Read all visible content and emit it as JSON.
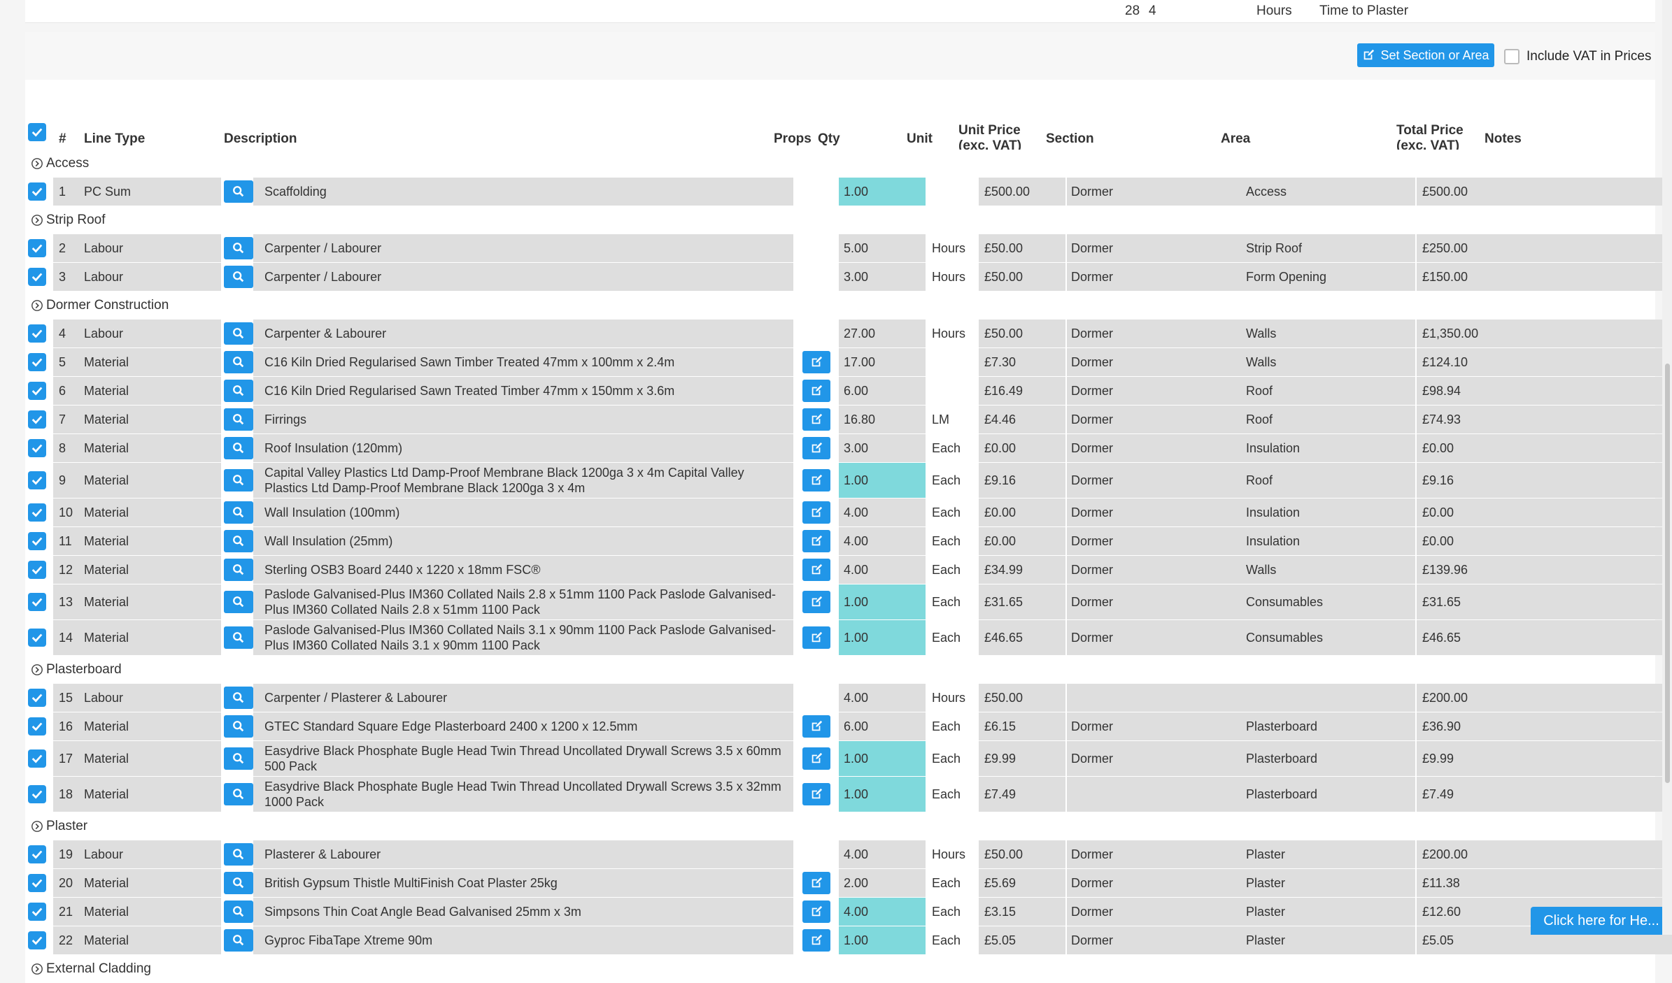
{
  "top": {
    "a": "28",
    "b": "4",
    "unit": "Hours",
    "label": "Time to Plaster"
  },
  "toolbar": {
    "set_section_label": "Set Section or Area",
    "vat_label": "Include VAT in Prices"
  },
  "headers": {
    "num": "#",
    "line_type": "Line Type",
    "description": "Description",
    "props": "Props",
    "qty": "Qty",
    "unit": "Unit",
    "unit_price_1": "Unit Price",
    "unit_price_2": "(exc. VAT)",
    "section": "Section",
    "area": "Area",
    "total_price_1": "Total Price",
    "total_price_2": "(exc. VAT)",
    "notes": "Notes"
  },
  "groups": [
    {
      "name": "Access",
      "rows": [
        {
          "num": "1",
          "type": "PC Sum",
          "desc": "Scaffolding",
          "edit": false,
          "qty": "1.00",
          "qty_hl": true,
          "unit": "",
          "price": "£500.00",
          "section": "Dormer",
          "area": "Access",
          "total": "£500.00"
        }
      ]
    },
    {
      "name": "Strip Roof",
      "rows": [
        {
          "num": "2",
          "type": "Labour",
          "desc": "Carpenter / Labourer",
          "edit": false,
          "qty": "5.00",
          "qty_hl": false,
          "unit": "Hours",
          "price": "£50.00",
          "section": "Dormer",
          "area": "Strip Roof",
          "total": "£250.00"
        },
        {
          "num": "3",
          "type": "Labour",
          "desc": "Carpenter / Labourer",
          "edit": false,
          "qty": "3.00",
          "qty_hl": false,
          "unit": "Hours",
          "price": "£50.00",
          "section": "Dormer",
          "area": "Form Opening",
          "total": "£150.00"
        }
      ]
    },
    {
      "name": "Dormer Construction",
      "rows": [
        {
          "num": "4",
          "type": "Labour",
          "desc": "Carpenter & Labourer",
          "edit": false,
          "qty": "27.00",
          "qty_hl": false,
          "unit": "Hours",
          "price": "£50.00",
          "section": "Dormer",
          "area": "Walls",
          "total": "£1,350.00"
        },
        {
          "num": "5",
          "type": "Material",
          "desc": "C16 Kiln Dried Regularised Sawn Timber Treated 47mm x 100mm x 2.4m",
          "edit": true,
          "qty": "17.00",
          "qty_hl": false,
          "unit": "",
          "price": "£7.30",
          "section": "Dormer",
          "area": "Walls",
          "total": "£124.10"
        },
        {
          "num": "6",
          "type": "Material",
          "desc": "C16 Kiln Dried Regularised Sawn Treated Timber 47mm x 150mm x 3.6m",
          "edit": true,
          "qty": "6.00",
          "qty_hl": false,
          "unit": "",
          "price": "£16.49",
          "section": "Dormer",
          "area": "Roof",
          "total": "£98.94"
        },
        {
          "num": "7",
          "type": "Material",
          "desc": "Firrings",
          "edit": true,
          "qty": "16.80",
          "qty_hl": false,
          "unit": "LM",
          "price": "£4.46",
          "section": "Dormer",
          "area": "Roof",
          "total": "£74.93"
        },
        {
          "num": "8",
          "type": "Material",
          "desc": "Roof Insulation (120mm)",
          "edit": true,
          "qty": "3.00",
          "qty_hl": false,
          "unit": "Each",
          "price": "£0.00",
          "section": "Dormer",
          "area": "Insulation",
          "total": "£0.00"
        },
        {
          "num": "9",
          "type": "Material",
          "desc": "Capital Valley Plastics Ltd Damp-Proof Membrane Black 1200ga 3 x 4m Capital Valley Plastics Ltd Damp-Proof Membrane Black 1200ga 3 x 4m",
          "edit": true,
          "qty": "1.00",
          "qty_hl": true,
          "unit": "Each",
          "price": "£9.16",
          "section": "Dormer",
          "area": "Roof",
          "total": "£9.16",
          "tall": true
        },
        {
          "num": "10",
          "type": "Material",
          "desc": "Wall Insulation (100mm)",
          "edit": true,
          "qty": "4.00",
          "qty_hl": false,
          "unit": "Each",
          "price": "£0.00",
          "section": "Dormer",
          "area": "Insulation",
          "total": "£0.00"
        },
        {
          "num": "11",
          "type": "Material",
          "desc": "Wall Insulation (25mm)",
          "edit": true,
          "qty": "4.00",
          "qty_hl": false,
          "unit": "Each",
          "price": "£0.00",
          "section": "Dormer",
          "area": "Insulation",
          "total": "£0.00"
        },
        {
          "num": "12",
          "type": "Material",
          "desc": "Sterling OSB3 Board 2440 x 1220 x 18mm FSC®",
          "edit": true,
          "qty": "4.00",
          "qty_hl": false,
          "unit": "Each",
          "price": "£34.99",
          "section": "Dormer",
          "area": "Walls",
          "total": "£139.96"
        },
        {
          "num": "13",
          "type": "Material",
          "desc": "Paslode Galvanised-Plus IM360 Collated Nails 2.8 x 51mm 1100 Pack Paslode Galvanised-Plus IM360 Collated Nails 2.8 x 51mm 1100 Pack",
          "edit": true,
          "qty": "1.00",
          "qty_hl": true,
          "unit": "Each",
          "price": "£31.65",
          "section": "Dormer",
          "area": "Consumables",
          "total": "£31.65",
          "tall": true
        },
        {
          "num": "14",
          "type": "Material",
          "desc": "Paslode Galvanised-Plus IM360 Collated Nails 3.1 x 90mm 1100 Pack Paslode Galvanised-Plus IM360 Collated Nails 3.1 x 90mm 1100 Pack",
          "edit": true,
          "qty": "1.00",
          "qty_hl": true,
          "unit": "Each",
          "price": "£46.65",
          "section": "Dormer",
          "area": "Consumables",
          "total": "£46.65",
          "tall": true
        }
      ]
    },
    {
      "name": "Plasterboard",
      "rows": [
        {
          "num": "15",
          "type": "Labour",
          "desc": "Carpenter / Plasterer & Labourer",
          "edit": false,
          "qty": "4.00",
          "qty_hl": false,
          "unit": "Hours",
          "price": "£50.00",
          "section": "",
          "area": "",
          "total": "£200.00"
        },
        {
          "num": "16",
          "type": "Material",
          "desc": "GTEC Standard Square Edge Plasterboard 2400 x 1200 x 12.5mm",
          "edit": true,
          "qty": "6.00",
          "qty_hl": false,
          "unit": "Each",
          "price": "£6.15",
          "section": "Dormer",
          "area": "Plasterboard",
          "total": "£36.90"
        },
        {
          "num": "17",
          "type": "Material",
          "desc": "Easydrive Black Phosphate Bugle Head Twin Thread Uncollated Drywall Screws 3.5 x 60mm 500 Pack",
          "edit": true,
          "qty": "1.00",
          "qty_hl": true,
          "unit": "Each",
          "price": "£9.99",
          "section": "Dormer",
          "area": "Plasterboard",
          "total": "£9.99",
          "tall": true
        },
        {
          "num": "18",
          "type": "Material",
          "desc": "Easydrive Black Phosphate Bugle Head Twin Thread Uncollated Drywall Screws 3.5 x 32mm 1000 Pack",
          "edit": true,
          "qty": "1.00",
          "qty_hl": true,
          "unit": "Each",
          "price": "£7.49",
          "section": "",
          "area": "Plasterboard",
          "total": "£7.49",
          "tall": true
        }
      ]
    },
    {
      "name": "Plaster",
      "rows": [
        {
          "num": "19",
          "type": "Labour",
          "desc": "Plasterer & Labourer",
          "edit": false,
          "qty": "4.00",
          "qty_hl": false,
          "unit": "Hours",
          "price": "£50.00",
          "section": "Dormer",
          "area": "Plaster",
          "total": "£200.00"
        },
        {
          "num": "20",
          "type": "Material",
          "desc": "British Gypsum Thistle MultiFinish Coat Plaster 25kg",
          "edit": true,
          "qty": "2.00",
          "qty_hl": false,
          "unit": "Each",
          "price": "£5.69",
          "section": "Dormer",
          "area": "Plaster",
          "total": "£11.38"
        },
        {
          "num": "21",
          "type": "Material",
          "desc": "Simpsons Thin Coat Angle Bead Galvanised 25mm x 3m",
          "edit": true,
          "qty": "4.00",
          "qty_hl": true,
          "unit": "Each",
          "price": "£3.15",
          "section": "Dormer",
          "area": "Plaster",
          "total": "£12.60"
        },
        {
          "num": "22",
          "type": "Material",
          "desc": "Gyproc FibaTape Xtreme 90m",
          "edit": true,
          "qty": "1.00",
          "qty_hl": true,
          "unit": "Each",
          "price": "£5.05",
          "section": "Dormer",
          "area": "Plaster",
          "total": "£5.05"
        }
      ]
    },
    {
      "name": "External Cladding",
      "rows": []
    }
  ],
  "help": {
    "label": "Click here for He..."
  }
}
